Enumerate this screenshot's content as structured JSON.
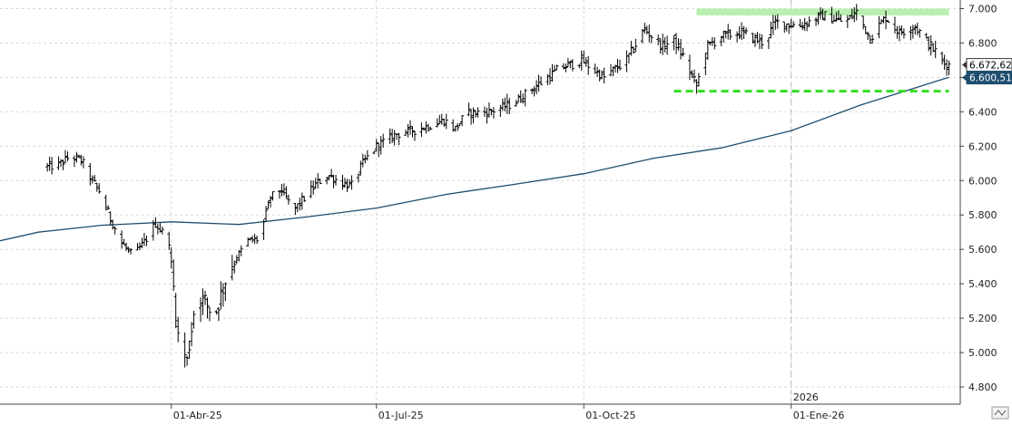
{
  "chart_data": {
    "type": "ohlc",
    "title": "",
    "xlabel": "",
    "ylabel": "",
    "ylim": [
      4700,
      7050
    ],
    "grid": true,
    "y_ticks": [
      4800,
      5000,
      5200,
      5400,
      5600,
      5800,
      6000,
      6200,
      6400,
      6600,
      6800,
      7000
    ],
    "y_tick_labels": [
      "4.800",
      "5.000",
      "5.200",
      "5.400",
      "5.600",
      "5.800",
      "6.000",
      "6.200",
      "6.400",
      "6.600",
      "6.800",
      "7.000"
    ],
    "x_ticks": [
      {
        "label": "01-Abr-25",
        "date": "2025-04-01"
      },
      {
        "label": "01-Jul-25",
        "date": "2025-07-01"
      },
      {
        "label": "01-Oct-25",
        "date": "2025-10-01"
      },
      {
        "label": "01-Ene-26",
        "date": "2026-01-01"
      }
    ],
    "year_marker": {
      "label": "2026",
      "date": "2026-01-01"
    },
    "price_series": {
      "name": "",
      "color": "#000000",
      "points": [
        {
          "date": "2025-02-05",
          "value": 6080
        },
        {
          "date": "2025-02-10",
          "value": 6090
        },
        {
          "date": "2025-02-15",
          "value": 6140
        },
        {
          "date": "2025-02-20",
          "value": 6120
        },
        {
          "date": "2025-02-25",
          "value": 6000
        },
        {
          "date": "2025-03-01",
          "value": 5920
        },
        {
          "date": "2025-03-05",
          "value": 5780
        },
        {
          "date": "2025-03-10",
          "value": 5640
        },
        {
          "date": "2025-03-15",
          "value": 5560
        },
        {
          "date": "2025-03-20",
          "value": 5640
        },
        {
          "date": "2025-03-25",
          "value": 5750
        },
        {
          "date": "2025-03-31",
          "value": 5650
        },
        {
          "date": "2025-04-04",
          "value": 5100
        },
        {
          "date": "2025-04-08",
          "value": 4950
        },
        {
          "date": "2025-04-12",
          "value": 5330
        },
        {
          "date": "2025-04-16",
          "value": 5300
        },
        {
          "date": "2025-04-20",
          "value": 5200
        },
        {
          "date": "2025-04-25",
          "value": 5420
        },
        {
          "date": "2025-04-30",
          "value": 5550
        },
        {
          "date": "2025-05-05",
          "value": 5650
        },
        {
          "date": "2025-05-10",
          "value": 5660
        },
        {
          "date": "2025-05-15",
          "value": 5900
        },
        {
          "date": "2025-05-20",
          "value": 5950
        },
        {
          "date": "2025-05-25",
          "value": 5820
        },
        {
          "date": "2025-05-30",
          "value": 5900
        },
        {
          "date": "2025-06-05",
          "value": 5990
        },
        {
          "date": "2025-06-10",
          "value": 6030
        },
        {
          "date": "2025-06-15",
          "value": 5990
        },
        {
          "date": "2025-06-20",
          "value": 5970
        },
        {
          "date": "2025-06-25",
          "value": 6100
        },
        {
          "date": "2025-07-01",
          "value": 6200
        },
        {
          "date": "2025-07-10",
          "value": 6270
        },
        {
          "date": "2025-07-20",
          "value": 6300
        },
        {
          "date": "2025-07-31",
          "value": 6350
        },
        {
          "date": "2025-08-05",
          "value": 6300
        },
        {
          "date": "2025-08-10",
          "value": 6390
        },
        {
          "date": "2025-08-20",
          "value": 6400
        },
        {
          "date": "2025-08-31",
          "value": 6450
        },
        {
          "date": "2025-09-10",
          "value": 6550
        },
        {
          "date": "2025-09-20",
          "value": 6650
        },
        {
          "date": "2025-09-30",
          "value": 6700
        },
        {
          "date": "2025-10-10",
          "value": 6600
        },
        {
          "date": "2025-10-20",
          "value": 6700
        },
        {
          "date": "2025-10-28",
          "value": 6880
        },
        {
          "date": "2025-11-05",
          "value": 6780
        },
        {
          "date": "2025-11-10",
          "value": 6820
        },
        {
          "date": "2025-11-15",
          "value": 6700
        },
        {
          "date": "2025-11-20",
          "value": 6550
        },
        {
          "date": "2025-11-25",
          "value": 6780
        },
        {
          "date": "2025-12-01",
          "value": 6840
        },
        {
          "date": "2025-12-10",
          "value": 6860
        },
        {
          "date": "2025-12-20",
          "value": 6800
        },
        {
          "date": "2025-12-25",
          "value": 6920
        },
        {
          "date": "2026-01-05",
          "value": 6900
        },
        {
          "date": "2026-01-15",
          "value": 6960
        },
        {
          "date": "2026-01-25",
          "value": 6920
        },
        {
          "date": "2026-01-30",
          "value": 6980
        },
        {
          "date": "2026-02-05",
          "value": 6830
        },
        {
          "date": "2026-02-12",
          "value": 6950
        },
        {
          "date": "2026-02-18",
          "value": 6860
        },
        {
          "date": "2026-02-25",
          "value": 6900
        },
        {
          "date": "2026-03-02",
          "value": 6810
        },
        {
          "date": "2026-03-06",
          "value": 6750
        },
        {
          "date": "2026-03-10",
          "value": 6680
        },
        {
          "date": "2026-03-12",
          "value": 6672.62
        }
      ]
    },
    "moving_average": {
      "name": "",
      "color": "#1f4e6e",
      "points": [
        {
          "date": "2025-01-15",
          "value": 5650
        },
        {
          "date": "2025-02-01",
          "value": 5700
        },
        {
          "date": "2025-03-01",
          "value": 5740
        },
        {
          "date": "2025-04-01",
          "value": 5760
        },
        {
          "date": "2025-05-01",
          "value": 5745
        },
        {
          "date": "2025-06-01",
          "value": 5790
        },
        {
          "date": "2025-07-01",
          "value": 5840
        },
        {
          "date": "2025-08-01",
          "value": 5920
        },
        {
          "date": "2025-09-01",
          "value": 5980
        },
        {
          "date": "2025-10-01",
          "value": 6040
        },
        {
          "date": "2025-11-01",
          "value": 6130
        },
        {
          "date": "2025-12-01",
          "value": 6190
        },
        {
          "date": "2026-01-01",
          "value": 6290
        },
        {
          "date": "2026-02-01",
          "value": 6440
        },
        {
          "date": "2026-03-12",
          "value": 6600.51
        }
      ]
    },
    "support_line": {
      "value": 6520,
      "from_date": "2025-11-10",
      "to_date": "2026-03-12",
      "color": "#33dd22",
      "style": "dashed"
    },
    "resistance_zone": {
      "from_value": 6960,
      "to_value": 7000,
      "from_date": "2025-11-20",
      "to_date": "2026-03-12",
      "color": "#b9f0b0"
    },
    "last_labels": [
      {
        "text": "6.672,62",
        "value": 6672.62,
        "fill": "#ffffff",
        "text_color": "#000000"
      },
      {
        "text": "6.600,51",
        "value": 6600.51,
        "fill": "#1f4e6e",
        "text_color": "#ffffff"
      }
    ],
    "x_range": [
      "2025-01-15",
      "2026-03-17"
    ]
  }
}
